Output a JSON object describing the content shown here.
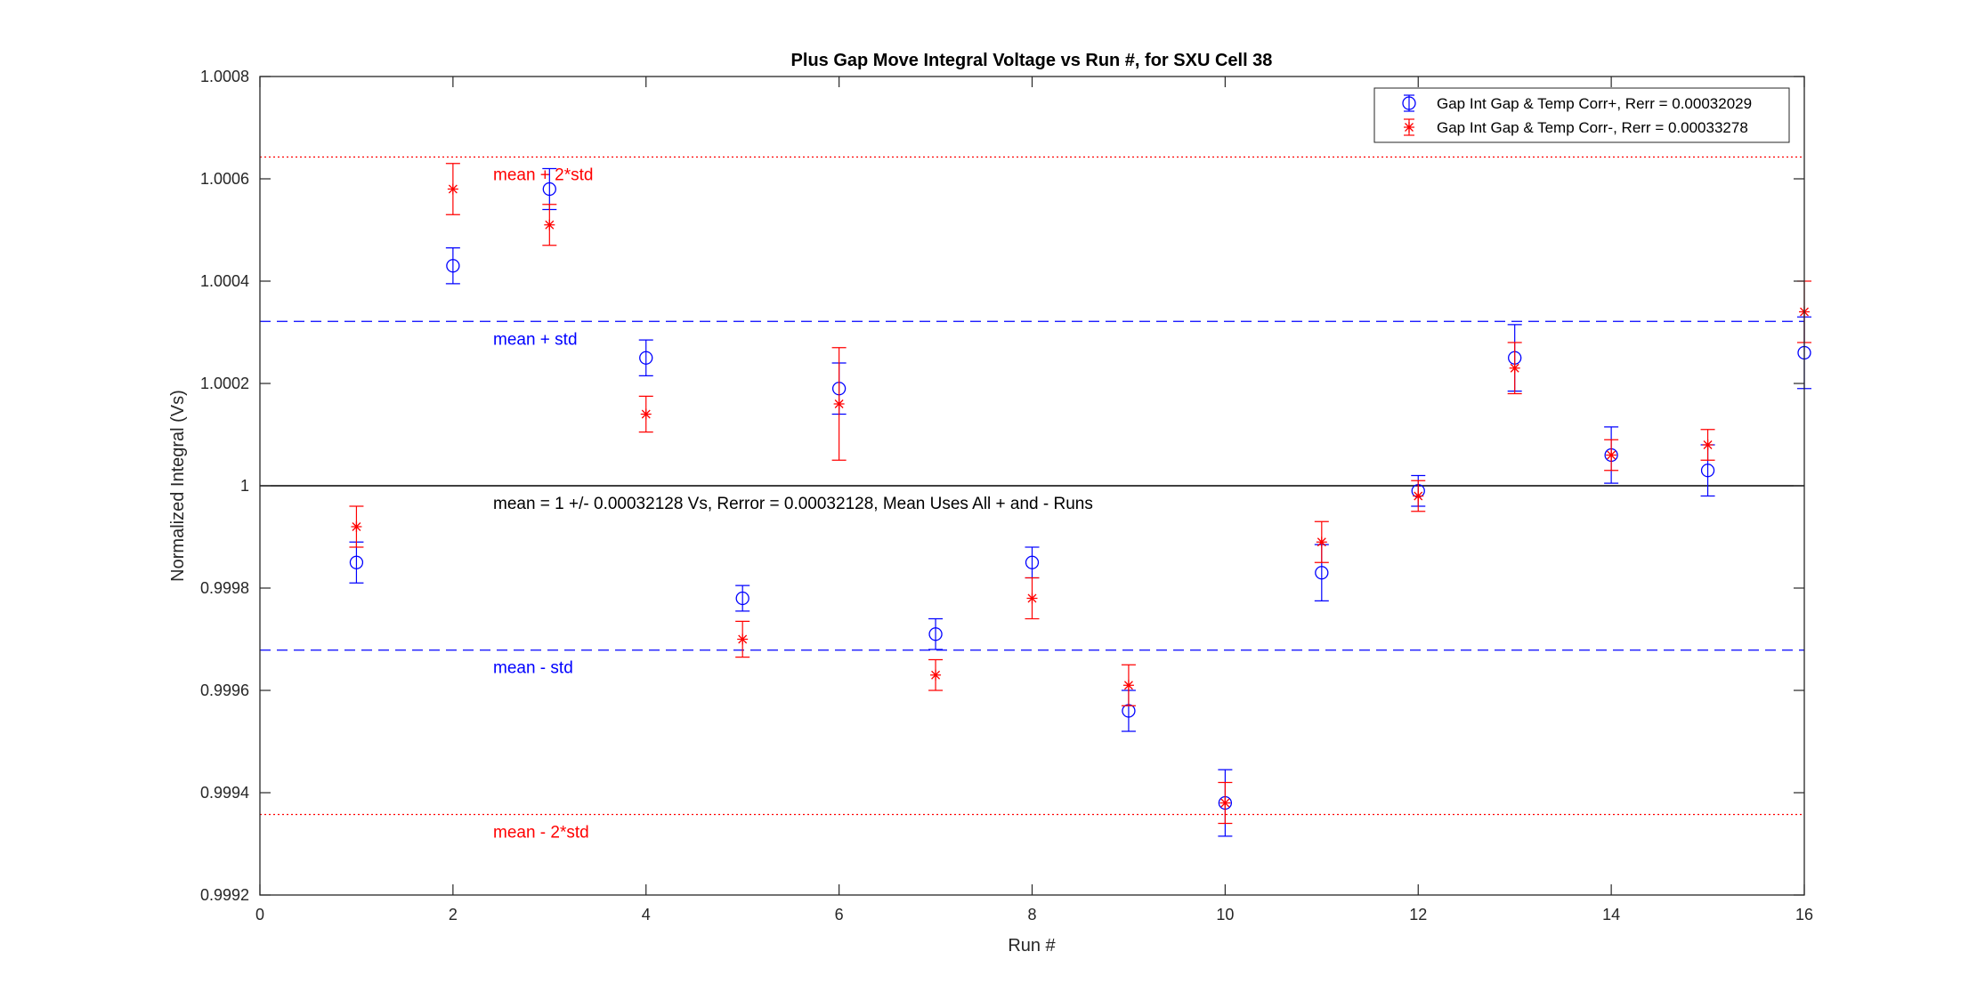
{
  "chart_data": {
    "type": "scatter",
    "title": "Plus Gap Move Integral Voltage vs Run #, for SXU Cell 38",
    "xlabel": "Run #",
    "ylabel": "Normalized Integral (Vs)",
    "xlim": [
      0,
      16
    ],
    "ylim": [
      0.9992,
      1.0008
    ],
    "xticks": [
      0,
      2,
      4,
      6,
      8,
      10,
      12,
      14,
      16
    ],
    "xtick_labels": [
      "0",
      "2",
      "4",
      "6",
      "8",
      "10",
      "12",
      "14",
      "16"
    ],
    "yticks": [
      0.9992,
      0.9994,
      0.9996,
      0.9998,
      1.0,
      1.0002,
      1.0004,
      1.0006,
      1.0008
    ],
    "ytick_labels": [
      "0.9992",
      "0.9994",
      "0.9996",
      "0.9998",
      "1",
      "1.0002",
      "1.0004",
      "1.0006",
      "1.0008"
    ],
    "grid": false,
    "legend_position": "top-right",
    "series": [
      {
        "name": "Gap Int Gap & Temp Corr+, Rerr = 0.00032029",
        "marker": "circle",
        "color": "#0000ff",
        "x": [
          1,
          2,
          3,
          4,
          5,
          6,
          7,
          8,
          9,
          10,
          11,
          12,
          13,
          14,
          15,
          16
        ],
        "y": [
          0.99985,
          1.00043,
          1.00058,
          1.00025,
          0.99978,
          1.00019,
          0.99971,
          0.99985,
          0.99956,
          0.99938,
          0.99983,
          0.99999,
          1.00025,
          1.00006,
          1.00003,
          1.00026
        ],
        "err": [
          4e-05,
          3.5e-05,
          4e-05,
          3.5e-05,
          2.5e-05,
          5e-05,
          3e-05,
          3e-05,
          4e-05,
          6.5e-05,
          5.5e-05,
          3e-05,
          6.5e-05,
          5.5e-05,
          5e-05,
          7e-05
        ]
      },
      {
        "name": "Gap Int Gap & Temp  Corr-, Rerr = 0.00033278",
        "marker": "asterisk",
        "color": "#ff0000",
        "x": [
          1,
          2,
          3,
          4,
          5,
          6,
          7,
          8,
          9,
          10,
          11,
          12,
          13,
          14,
          15,
          16
        ],
        "y": [
          0.99992,
          1.00058,
          1.00051,
          1.00014,
          0.9997,
          1.00016,
          0.99963,
          0.99978,
          0.99961,
          0.99938,
          0.99989,
          0.99998,
          1.00023,
          1.00006,
          1.00008,
          1.00034
        ],
        "err": [
          4e-05,
          5e-05,
          4e-05,
          3.5e-05,
          3.5e-05,
          0.00011,
          3e-05,
          4e-05,
          4e-05,
          4e-05,
          4e-05,
          3e-05,
          5e-05,
          3e-05,
          3e-05,
          6e-05
        ]
      }
    ],
    "reference_lines": [
      {
        "y": 1.0,
        "color": "#000000",
        "style": "solid",
        "label": "mean = 1 +/- 0.00032128 Vs, Rerror = 0.00032128, Mean Uses All + and - Runs",
        "label_color": "#000000"
      },
      {
        "y": 1.00032128,
        "color": "#0000ff",
        "style": "dashed",
        "label": "mean + std",
        "label_color": "#0000ff"
      },
      {
        "y": 0.99967872,
        "color": "#0000ff",
        "style": "dashed",
        "label": "mean - std",
        "label_color": "#0000ff"
      },
      {
        "y": 1.00064256,
        "color": "#ff0000",
        "style": "dotted",
        "label": "mean + 2*std",
        "label_color": "#ff0000"
      },
      {
        "y": 0.99935744,
        "color": "#ff0000",
        "style": "dotted",
        "label": "mean - 2*std",
        "label_color": "#ff0000"
      }
    ]
  }
}
